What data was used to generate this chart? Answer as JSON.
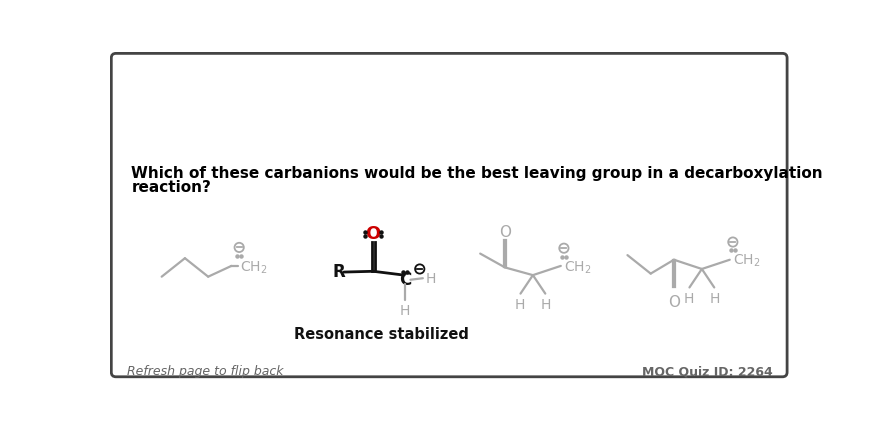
{
  "title_line1": "Which of these carbanions would be the best leaving group in a decarboxylation",
  "title_line2": "reaction?",
  "footer_left": "Refresh page to flip back",
  "footer_right": "MOC Quiz ID: 2264",
  "resonance_label": "Resonance stabilized",
  "bg_color": "#ffffff",
  "border_color": "#444444",
  "title_color": "#000000",
  "gray_color": "#aaaaaa",
  "black_color": "#111111",
  "red_color": "#cc0000",
  "footer_color": "#666666",
  "title_fontsize": 11,
  "footer_fontsize": 9
}
